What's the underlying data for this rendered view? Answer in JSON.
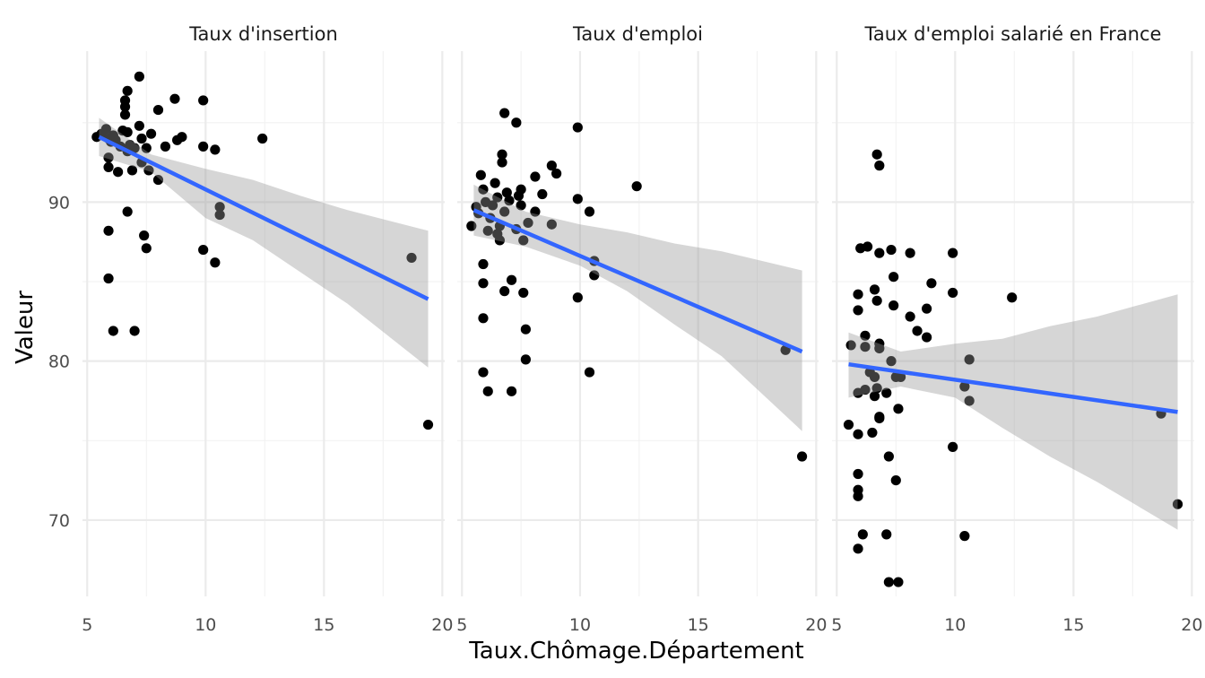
{
  "chart_data": {
    "type": "scatter",
    "xlabel": "Taux.Chômage.Département",
    "ylabel": "Valeur",
    "xlim": [
      4.8,
      20.1
    ],
    "ylim": [
      65.2,
      99.5
    ],
    "x_breaks": [
      5,
      10,
      15,
      20
    ],
    "x_tick_labels": [
      "5",
      "10",
      "15",
      "20"
    ],
    "y_breaks": [
      70,
      80,
      90
    ],
    "y_tick_labels": [
      "70",
      "80",
      "90"
    ],
    "fit_color": "#3366FF",
    "band_color": "#999999",
    "point_color": "#000000",
    "panels": [
      {
        "title": "Taux d'insertion",
        "points": [
          [
            5.4,
            94.1
          ],
          [
            5.6,
            94.3
          ],
          [
            5.8,
            94.6
          ],
          [
            5.9,
            94.0
          ],
          [
            6.0,
            93.8
          ],
          [
            6.1,
            94.2
          ],
          [
            6.2,
            93.9
          ],
          [
            5.9,
            92.8
          ],
          [
            5.9,
            92.2
          ],
          [
            6.3,
            91.9
          ],
          [
            6.4,
            93.5
          ],
          [
            6.5,
            94.5
          ],
          [
            6.6,
            96.0
          ],
          [
            6.6,
            96.4
          ],
          [
            6.6,
            95.5
          ],
          [
            6.7,
            97.0
          ],
          [
            6.7,
            94.4
          ],
          [
            6.7,
            93.2
          ],
          [
            6.8,
            93.6
          ],
          [
            6.9,
            92.0
          ],
          [
            7.0,
            93.4
          ],
          [
            7.2,
            97.9
          ],
          [
            7.2,
            94.8
          ],
          [
            7.3,
            94.0
          ],
          [
            7.3,
            92.5
          ],
          [
            7.5,
            93.4
          ],
          [
            7.6,
            92.0
          ],
          [
            7.7,
            94.3
          ],
          [
            8.0,
            95.8
          ],
          [
            8.0,
            91.4
          ],
          [
            8.3,
            93.5
          ],
          [
            8.7,
            96.5
          ],
          [
            8.8,
            93.9
          ],
          [
            9.0,
            94.1
          ],
          [
            9.9,
            96.4
          ],
          [
            9.9,
            93.5
          ],
          [
            10.4,
            93.3
          ],
          [
            10.6,
            89.7
          ],
          [
            10.6,
            89.2
          ],
          [
            12.4,
            94.0
          ],
          [
            5.9,
            88.2
          ],
          [
            6.7,
            89.4
          ],
          [
            7.4,
            87.9
          ],
          [
            7.5,
            87.1
          ],
          [
            9.9,
            87.0
          ],
          [
            10.4,
            86.2
          ],
          [
            5.9,
            85.2
          ],
          [
            6.1,
            81.9
          ],
          [
            7.0,
            81.9
          ],
          [
            18.7,
            86.5
          ],
          [
            19.4,
            76.0
          ]
        ],
        "fit": {
          "x": [
            5.5,
            19.4
          ],
          "y": [
            94.1,
            83.9
          ]
        },
        "band": {
          "x": [
            5.5,
            7.7,
            10.0,
            12.0,
            14.0,
            16.0,
            19.4
          ],
          "lower": [
            92.9,
            91.9,
            89.0,
            87.6,
            85.6,
            83.6,
            79.6
          ],
          "upper": [
            95.3,
            93.0,
            92.1,
            91.4,
            90.4,
            89.5,
            88.2
          ]
        }
      },
      {
        "title": "Taux d'emploi",
        "points": [
          [
            5.4,
            88.5
          ],
          [
            5.6,
            89.7
          ],
          [
            5.7,
            89.3
          ],
          [
            5.8,
            91.7
          ],
          [
            5.9,
            90.8
          ],
          [
            5.9,
            86.1
          ],
          [
            5.9,
            84.9
          ],
          [
            5.9,
            82.7
          ],
          [
            5.9,
            79.3
          ],
          [
            6.0,
            90.0
          ],
          [
            6.1,
            88.2
          ],
          [
            6.1,
            78.1
          ],
          [
            6.2,
            89.0
          ],
          [
            6.3,
            89.8
          ],
          [
            6.4,
            91.2
          ],
          [
            6.5,
            90.3
          ],
          [
            6.5,
            88.0
          ],
          [
            6.6,
            87.6
          ],
          [
            6.6,
            88.5
          ],
          [
            6.7,
            92.5
          ],
          [
            6.7,
            93.0
          ],
          [
            6.8,
            95.6
          ],
          [
            6.8,
            84.4
          ],
          [
            6.8,
            89.4
          ],
          [
            6.9,
            90.6
          ],
          [
            7.0,
            90.1
          ],
          [
            7.1,
            85.1
          ],
          [
            7.1,
            78.1
          ],
          [
            7.3,
            95.0
          ],
          [
            7.3,
            88.3
          ],
          [
            7.4,
            90.4
          ],
          [
            7.5,
            89.8
          ],
          [
            7.5,
            90.8
          ],
          [
            7.6,
            87.6
          ],
          [
            7.6,
            84.3
          ],
          [
            7.7,
            82.0
          ],
          [
            7.7,
            80.1
          ],
          [
            7.8,
            88.7
          ],
          [
            8.1,
            89.4
          ],
          [
            8.1,
            91.6
          ],
          [
            8.4,
            90.5
          ],
          [
            8.8,
            92.3
          ],
          [
            8.8,
            88.6
          ],
          [
            9.0,
            91.8
          ],
          [
            9.9,
            94.7
          ],
          [
            9.9,
            90.2
          ],
          [
            9.9,
            84.0
          ],
          [
            10.4,
            89.4
          ],
          [
            10.4,
            79.3
          ],
          [
            10.6,
            86.3
          ],
          [
            10.6,
            85.4
          ],
          [
            12.4,
            91.0
          ],
          [
            18.7,
            80.7
          ],
          [
            19.4,
            74.0
          ]
        ],
        "fit": {
          "x": [
            5.5,
            19.4
          ],
          "y": [
            89.5,
            80.6
          ]
        },
        "band": {
          "x": [
            5.5,
            7.7,
            10.0,
            12.0,
            14.0,
            16.0,
            19.4
          ],
          "lower": [
            87.9,
            87.2,
            86.0,
            84.4,
            82.3,
            80.3,
            75.6
          ],
          "upper": [
            91.1,
            89.4,
            88.6,
            88.1,
            87.4,
            86.9,
            85.7
          ]
        }
      },
      {
        "title": "Taux d'emploi salarié en France",
        "points": [
          [
            5.5,
            76.0
          ],
          [
            5.6,
            81.0
          ],
          [
            5.9,
            84.2
          ],
          [
            5.9,
            83.2
          ],
          [
            5.9,
            78.0
          ],
          [
            5.9,
            75.4
          ],
          [
            5.9,
            72.9
          ],
          [
            5.9,
            71.9
          ],
          [
            5.9,
            71.5
          ],
          [
            5.9,
            68.2
          ],
          [
            6.0,
            87.1
          ],
          [
            6.1,
            69.1
          ],
          [
            6.2,
            81.6
          ],
          [
            6.2,
            80.9
          ],
          [
            6.2,
            78.2
          ],
          [
            6.3,
            87.2
          ],
          [
            6.4,
            79.3
          ],
          [
            6.5,
            75.5
          ],
          [
            6.6,
            79.0
          ],
          [
            6.6,
            77.8
          ],
          [
            6.6,
            84.5
          ],
          [
            6.7,
            83.8
          ],
          [
            6.7,
            78.3
          ],
          [
            6.8,
            81.1
          ],
          [
            6.8,
            80.8
          ],
          [
            6.8,
            76.4
          ],
          [
            6.8,
            76.5
          ],
          [
            6.8,
            86.8
          ],
          [
            6.7,
            93.0
          ],
          [
            6.8,
            92.3
          ],
          [
            7.1,
            78.0
          ],
          [
            7.1,
            69.1
          ],
          [
            7.2,
            66.1
          ],
          [
            7.2,
            74.0
          ],
          [
            7.3,
            80.0
          ],
          [
            7.3,
            87.0
          ],
          [
            7.4,
            85.3
          ],
          [
            7.4,
            83.5
          ],
          [
            7.5,
            79.0
          ],
          [
            7.5,
            72.5
          ],
          [
            7.6,
            77.0
          ],
          [
            7.7,
            79.0
          ],
          [
            8.1,
            86.8
          ],
          [
            8.1,
            82.8
          ],
          [
            8.4,
            81.9
          ],
          [
            8.8,
            81.5
          ],
          [
            8.8,
            83.3
          ],
          [
            9.0,
            84.9
          ],
          [
            9.9,
            86.8
          ],
          [
            9.9,
            84.3
          ],
          [
            9.9,
            74.6
          ],
          [
            10.4,
            78.4
          ],
          [
            10.4,
            69.0
          ],
          [
            10.6,
            80.1
          ],
          [
            10.6,
            77.5
          ],
          [
            12.4,
            84.0
          ],
          [
            18.7,
            76.7
          ],
          [
            19.4,
            71.0
          ],
          [
            7.6,
            66.1
          ]
        ],
        "fit": {
          "x": [
            5.5,
            19.4
          ],
          "y": [
            79.8,
            76.8
          ]
        },
        "band": {
          "x": [
            5.5,
            7.7,
            10.0,
            12.0,
            14.0,
            16.0,
            19.4
          ],
          "lower": [
            77.7,
            78.4,
            77.7,
            75.8,
            74.0,
            72.4,
            69.4
          ],
          "upper": [
            81.8,
            80.6,
            81.1,
            81.4,
            82.2,
            82.8,
            84.2
          ]
        }
      }
    ]
  }
}
